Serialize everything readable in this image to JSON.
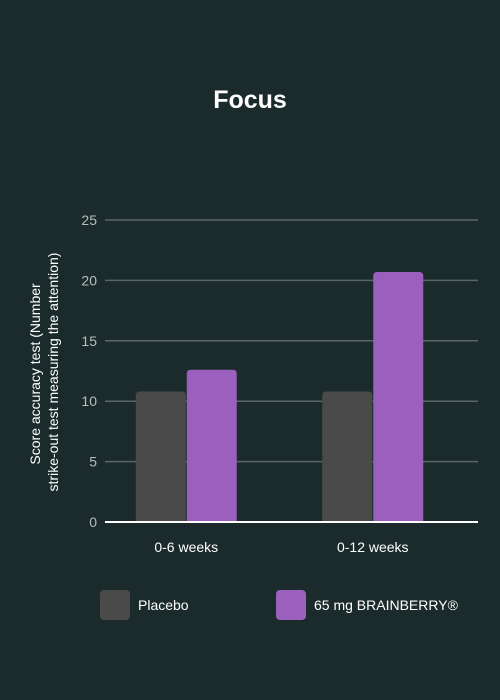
{
  "chart_data": {
    "type": "bar",
    "title": "Focus",
    "ylabel_lines": [
      "Score accuracy test (Number",
      "strike-out test measuring the attention)"
    ],
    "xlabel": "",
    "categories": [
      "0-6 weeks",
      "0-12 weeks"
    ],
    "series": [
      {
        "name": "Placebo",
        "values": [
          10.8,
          10.8
        ],
        "color": "#4a4a4a"
      },
      {
        "name": "65 mg BRAINBERRY®",
        "values": [
          12.6,
          20.7
        ],
        "color": "#9b5fbd"
      }
    ],
    "ylim": [
      0,
      25
    ],
    "yticks": [
      "0",
      "5",
      "10",
      "15",
      "20",
      "25"
    ],
    "grid": true,
    "legend_position": "bottom"
  },
  "colors": {
    "background": "#1b2a2a",
    "gridline": "#5a6666",
    "axis": "#ffffff"
  }
}
